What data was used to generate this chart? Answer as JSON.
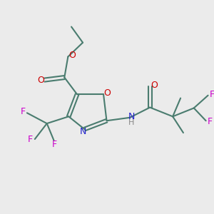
{
  "bg_color": "#ebebeb",
  "bond_color": "#4a7c6f",
  "N_color": "#2020cc",
  "O_color": "#cc0000",
  "F_color": "#cc00cc",
  "H_color": "#888888",
  "line_width": 1.5,
  "figsize": [
    3.0,
    3.0
  ],
  "dpi": 100,
  "xlim": [
    0,
    10
  ],
  "ylim": [
    0,
    10
  ]
}
